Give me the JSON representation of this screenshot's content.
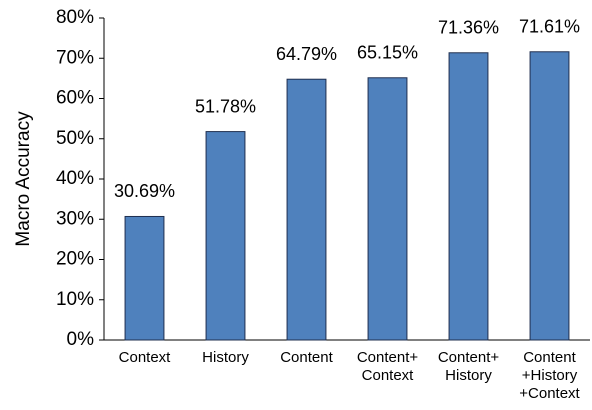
{
  "chart_data": {
    "type": "bar",
    "y_label": "Macro Accuracy",
    "categories": [
      "Context",
      "History",
      "Content",
      "Content+\nContext",
      "Content+\nHistory",
      "Content\n+History\n+Context"
    ],
    "values": [
      30.69,
      51.78,
      64.79,
      65.15,
      71.36,
      71.61
    ],
    "value_labels": [
      "30.69%",
      "51.78%",
      "64.79%",
      "65.15%",
      "71.36%",
      "71.61%"
    ],
    "color": "#4f81bd",
    "ylim": [
      0,
      80
    ],
    "yticks": [
      {
        "value": 0,
        "label": "0%"
      },
      {
        "value": 10,
        "label": "10%"
      },
      {
        "value": 20,
        "label": "20%"
      },
      {
        "value": 30,
        "label": "30%"
      },
      {
        "value": 40,
        "label": "40%"
      },
      {
        "value": 50,
        "label": "50%"
      },
      {
        "value": 60,
        "label": "60%"
      },
      {
        "value": 70,
        "label": "70%"
      },
      {
        "value": 80,
        "label": "80%"
      }
    ],
    "grid": false
  }
}
